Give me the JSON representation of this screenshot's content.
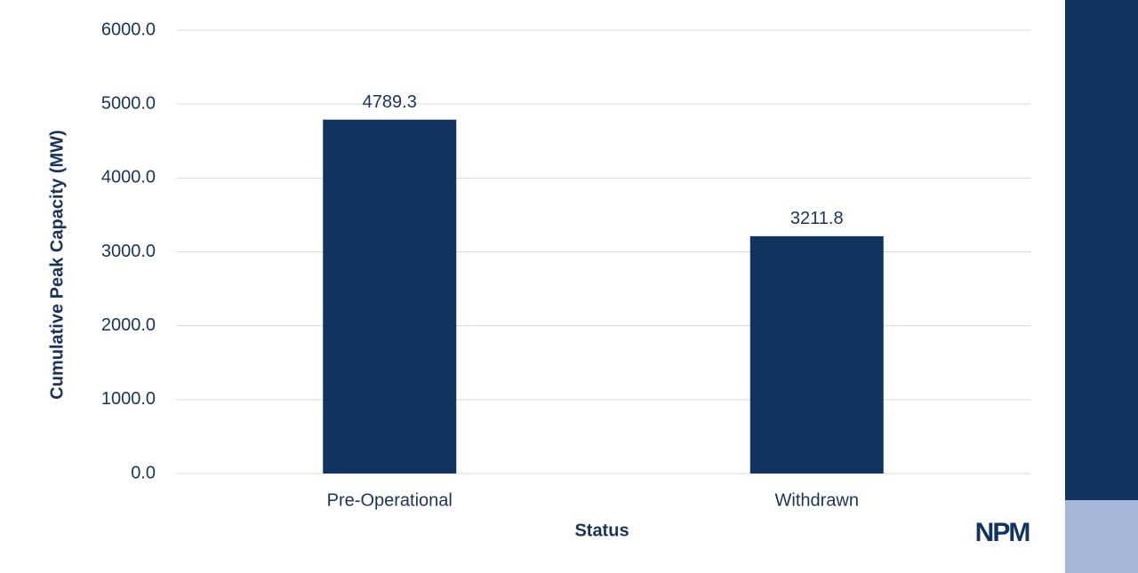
{
  "chart_data": {
    "type": "bar",
    "categories": [
      "Pre-Operational",
      "Withdrawn"
    ],
    "values": [
      4789.3,
      3211.8
    ],
    "color": "#12325f",
    "xlabel": "Status",
    "ylabel": "Cumulative Peak Capacity (MW)",
    "ylim": [
      0,
      6000
    ],
    "yticks": [
      {
        "value": 0,
        "label": "0.0"
      },
      {
        "value": 1000,
        "label": "1000.0"
      },
      {
        "value": 2000,
        "label": "2000.0"
      },
      {
        "value": 3000,
        "label": "3000.0"
      },
      {
        "value": 4000,
        "label": "4000.0"
      },
      {
        "value": 5000,
        "label": "5000.0"
      },
      {
        "value": 6000,
        "label": "6000.0"
      }
    ],
    "grid": true
  },
  "logo": "NPM"
}
